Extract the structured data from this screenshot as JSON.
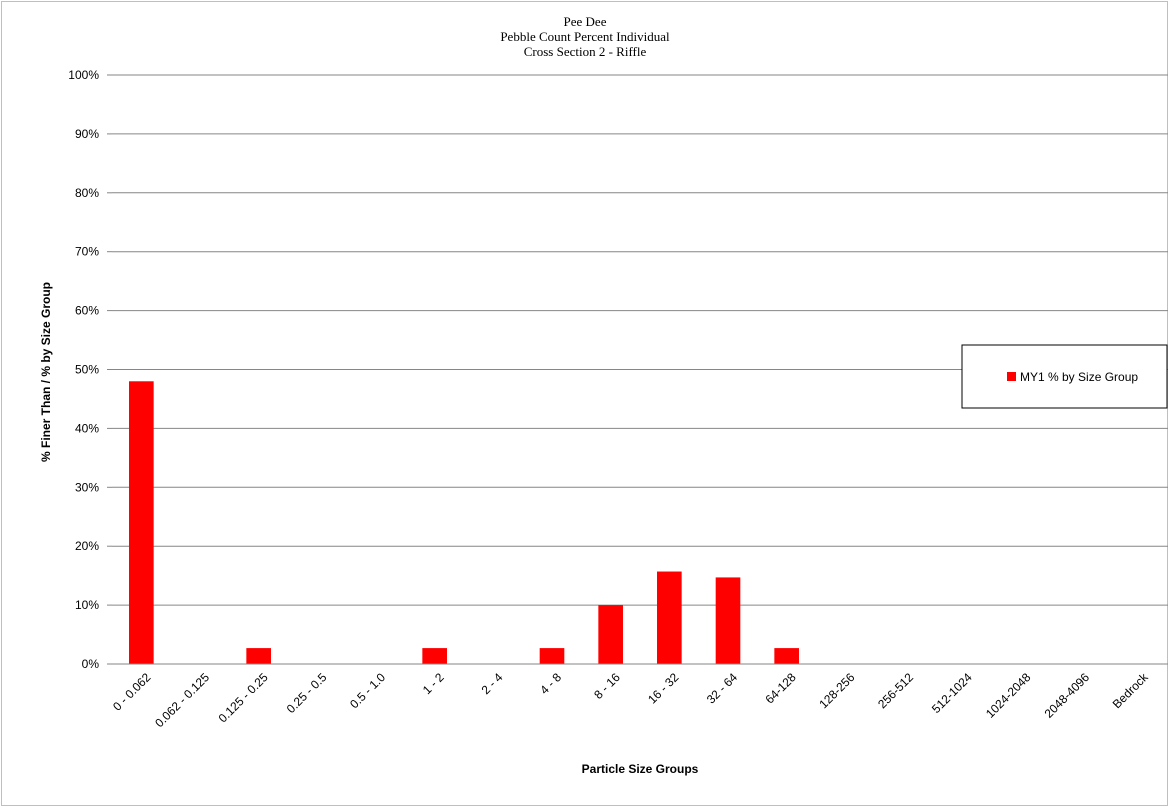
{
  "chart_data": {
    "type": "bar",
    "title_lines": [
      "Pee Dee",
      "Pebble Count Percent Individual",
      "Cross Section 2 - Riffle"
    ],
    "xlabel": "Particle Size Groups",
    "ylabel": "% Finer Than  /  % by Size Group",
    "ylim": [
      0,
      100
    ],
    "y_ticks": [
      0,
      10,
      20,
      30,
      40,
      50,
      60,
      70,
      80,
      90,
      100
    ],
    "y_tick_labels": [
      "0%",
      "10%",
      "20%",
      "30%",
      "40%",
      "50%",
      "60%",
      "70%",
      "80%",
      "90%",
      "100%"
    ],
    "categories": [
      "0 - 0.062",
      "0.062 - 0.125",
      "0.125 - 0.25",
      "0.25 - 0.5",
      "0.5 - 1.0",
      "1 - 2",
      "2 - 4",
      "4 - 8",
      "8 - 16",
      "16 - 32",
      "32 - 64",
      "64-128",
      "128-256",
      "256-512",
      "512-1024",
      "1024-2048",
      "2048-4096",
      "Bedrock"
    ],
    "series": [
      {
        "name": "MY1 % by Size Group",
        "color": "#ff0000",
        "values": [
          48,
          0,
          2.7,
          0,
          0,
          2.7,
          0,
          2.7,
          10,
          15.7,
          14.7,
          2.7,
          0,
          0,
          0,
          0,
          0,
          0
        ]
      }
    ],
    "grid": true,
    "legend_position": "right"
  }
}
